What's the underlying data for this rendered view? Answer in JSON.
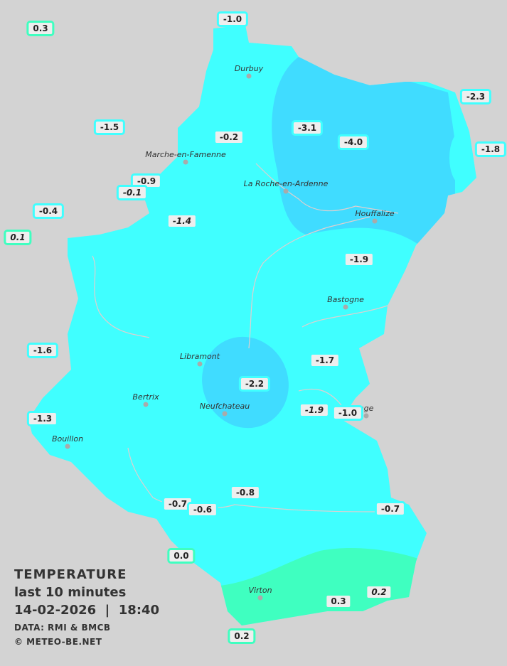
{
  "legend": {
    "title": "TEMPERATURE",
    "period": "last 10 minutes",
    "datetime": "14-02-2026  |  18:40",
    "source": "DATA: RMI & BMCB",
    "copyright": "© METEO-BE.NET"
  },
  "colors": {
    "background": "#d3d3d3",
    "cold_zone": "#40dcff",
    "main_zone": "#40ffff",
    "warm_zone": "#3fffc0",
    "negative_border": "#40ffff",
    "positive_border": "#3fffc0"
  },
  "towns": [
    {
      "name": "Durbuy"
    },
    {
      "name": "Marche-en-Famenne"
    },
    {
      "name": "La Roche-en-Ardenne"
    },
    {
      "name": "Houffalize"
    },
    {
      "name": "Bastogne"
    },
    {
      "name": "Libramont"
    },
    {
      "name": "Bertrix"
    },
    {
      "name": "Neufchateau"
    },
    {
      "name": "Bouillon"
    },
    {
      "name": "nge"
    },
    {
      "name": "Virton"
    }
  ],
  "readings": [
    {
      "value": "0.3",
      "italic": false,
      "positive": true
    },
    {
      "value": "-1.0",
      "italic": false,
      "positive": false
    },
    {
      "value": "-2.3",
      "italic": false,
      "positive": false
    },
    {
      "value": "-1.5",
      "italic": false,
      "positive": false
    },
    {
      "value": "-0.2",
      "italic": false,
      "positive": false
    },
    {
      "value": "-3.1",
      "italic": false,
      "positive": false
    },
    {
      "value": "-4.0",
      "italic": false,
      "positive": false
    },
    {
      "value": "-1.8",
      "italic": false,
      "positive": false
    },
    {
      "value": "-0.9",
      "italic": false,
      "positive": false
    },
    {
      "value": "-0.1",
      "italic": true,
      "positive": false
    },
    {
      "value": "-0.4",
      "italic": false,
      "positive": false
    },
    {
      "value": "0.1",
      "italic": true,
      "positive": true
    },
    {
      "value": "-1.4",
      "italic": true,
      "positive": false
    },
    {
      "value": "-1.9",
      "italic": false,
      "positive": false
    },
    {
      "value": "-1.6",
      "italic": false,
      "positive": false
    },
    {
      "value": "-1.7",
      "italic": false,
      "positive": false
    },
    {
      "value": "-2.2",
      "italic": false,
      "positive": false
    },
    {
      "value": "-1.9",
      "italic": true,
      "positive": false
    },
    {
      "value": "-1.0",
      "italic": false,
      "positive": false
    },
    {
      "value": "-1.3",
      "italic": false,
      "positive": false
    },
    {
      "value": "-0.8",
      "italic": false,
      "positive": false
    },
    {
      "value": "-0.7",
      "italic": false,
      "positive": false
    },
    {
      "value": "-0.6",
      "italic": false,
      "positive": false
    },
    {
      "value": "-0.7",
      "italic": false,
      "positive": false
    },
    {
      "value": "0.0",
      "italic": false,
      "positive": true
    },
    {
      "value": "0.3",
      "italic": false,
      "positive": true
    },
    {
      "value": "0.2",
      "italic": true,
      "positive": true
    },
    {
      "value": "0.2",
      "italic": false,
      "positive": true
    }
  ]
}
